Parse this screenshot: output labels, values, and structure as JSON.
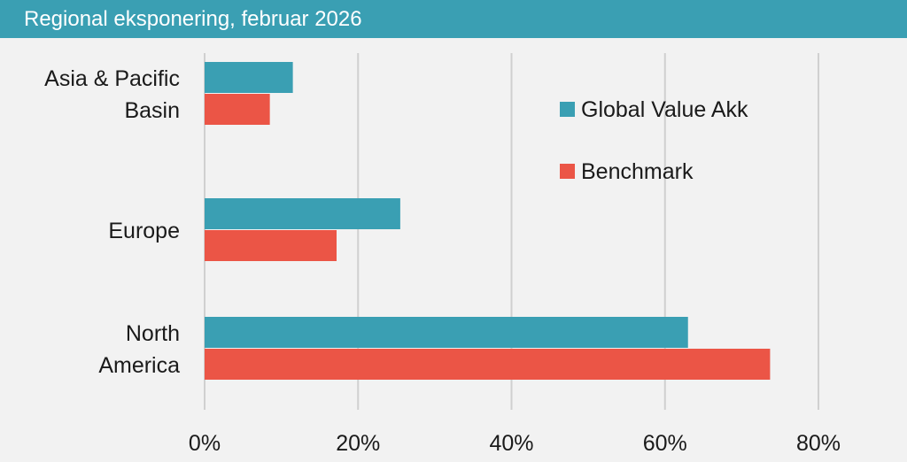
{
  "header": {
    "title": "Regional eksponering, februar 2026"
  },
  "colors": {
    "header_bg": "#3a9fb3",
    "background": "#f2f2f2",
    "grid": "#d0d0d0"
  },
  "chart_data": {
    "type": "bar",
    "orientation": "horizontal",
    "title": "Regional eksponering, februar 2026",
    "categories": [
      [
        "Asia & Pacific",
        "Basin"
      ],
      [
        "Europe"
      ],
      [
        "North",
        "America"
      ]
    ],
    "series": [
      {
        "name": "Global Value Akk",
        "color": "#3a9fb3",
        "values": [
          11.5,
          25.5,
          63.0
        ]
      },
      {
        "name": "Benchmark",
        "color": "#eb5546",
        "values": [
          8.5,
          17.2,
          73.7
        ]
      }
    ],
    "xlim": [
      0,
      80
    ],
    "xticks": [
      0,
      20,
      40,
      60,
      80
    ],
    "tick_suffix": "%",
    "grid": true,
    "legend_position": "top-right"
  }
}
